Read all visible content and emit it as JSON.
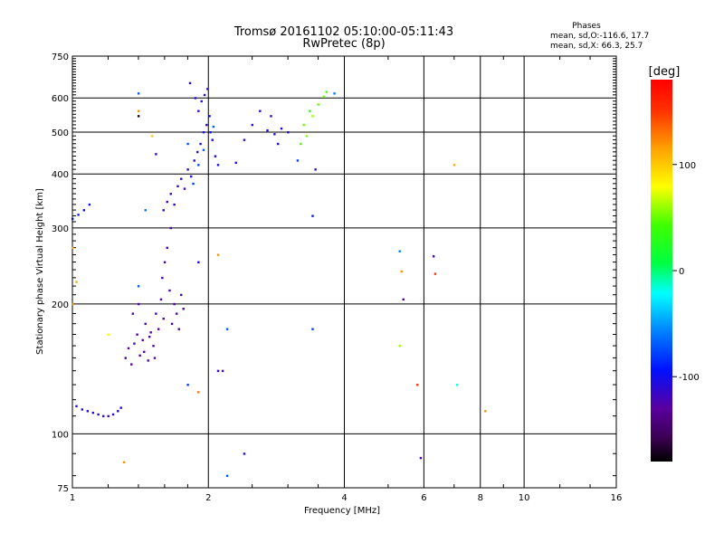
{
  "title": "Tromsø 20161102 05:10:00-05:11:43",
  "subtitle": "RwPretec (8p)",
  "phases_box": {
    "heading": "Phases",
    "line_o": "mean, sd,O:-116.6, 17.7",
    "line_x": "mean, sd,X:  66.3, 25.7"
  },
  "colorbar": {
    "unit_label": "[deg]",
    "tick_labels": [
      "100",
      "0",
      "-100"
    ],
    "tick_values": [
      100,
      0,
      -100
    ],
    "range": [
      -180,
      180
    ]
  },
  "chart_data": {
    "type": "scatter",
    "title": "Tromsø 20161102 05:10:00-05:11:43",
    "subtitle": "RwPretec (8p)",
    "xlabel": "Frequency [MHz]",
    "ylabel": "Stationary phase Virtual Height [km]",
    "x_scale": "log",
    "y_scale": "log",
    "xlim": [
      1,
      16
    ],
    "ylim": [
      75,
      750
    ],
    "x_tick_labels": [
      "1",
      "2",
      "4",
      "6",
      "8",
      "10",
      "16"
    ],
    "x_tick_values": [
      1,
      2,
      4,
      6,
      8,
      10,
      16
    ],
    "y_tick_labels": [
      "75",
      "100",
      "200",
      "300",
      "400",
      "500",
      "600",
      "750"
    ],
    "y_tick_values": [
      75,
      100,
      200,
      300,
      400,
      500,
      600,
      750
    ],
    "grid": true,
    "color_scale": "phase [deg], rainbow, -180 to 180",
    "series": [
      {
        "points": [
          [
            1.02,
            116,
            -110
          ],
          [
            1.05,
            114,
            -105
          ],
          [
            1.08,
            113,
            -108
          ],
          [
            1.11,
            112,
            -112
          ],
          [
            1.14,
            111,
            -115
          ],
          [
            1.17,
            110,
            -110
          ],
          [
            1.2,
            110,
            -118
          ],
          [
            1.23,
            111,
            -112
          ],
          [
            1.26,
            113,
            -108
          ],
          [
            1.28,
            115,
            -104
          ],
          [
            1.0,
            315,
            -95
          ],
          [
            1.03,
            322,
            -90
          ],
          [
            1.06,
            330,
            -100
          ],
          [
            1.09,
            340,
            -92
          ],
          [
            1.31,
            150,
            -125
          ],
          [
            1.33,
            158,
            -128
          ],
          [
            1.35,
            145,
            -132
          ],
          [
            1.37,
            162,
            -124
          ],
          [
            1.39,
            170,
            -126
          ],
          [
            1.41,
            152,
            -130
          ],
          [
            1.43,
            165,
            -122
          ],
          [
            1.45,
            180,
            -124
          ],
          [
            1.47,
            148,
            -128
          ],
          [
            1.49,
            172,
            -130
          ],
          [
            1.51,
            160,
            -126
          ],
          [
            1.53,
            190,
            -120
          ],
          [
            1.55,
            175,
            -128
          ],
          [
            1.57,
            205,
            -122
          ],
          [
            1.59,
            185,
            -126
          ],
          [
            1.36,
            190,
            -124
          ],
          [
            1.4,
            200,
            -120
          ],
          [
            1.44,
            155,
            -132
          ],
          [
            1.48,
            168,
            -126
          ],
          [
            1.52,
            150,
            -128
          ],
          [
            1.58,
            230,
            -122
          ],
          [
            1.6,
            250,
            -126
          ],
          [
            1.62,
            270,
            -120
          ],
          [
            1.64,
            215,
            -124
          ],
          [
            1.66,
            180,
            -118
          ],
          [
            1.68,
            200,
            -122
          ],
          [
            1.7,
            190,
            -126
          ],
          [
            1.72,
            175,
            -120
          ],
          [
            1.74,
            210,
            -124
          ],
          [
            1.76,
            195,
            -128
          ],
          [
            1.59,
            330,
            -120
          ],
          [
            1.62,
            345,
            -118
          ],
          [
            1.65,
            360,
            -122
          ],
          [
            1.68,
            340,
            -116
          ],
          [
            1.71,
            375,
            -120
          ],
          [
            1.74,
            390,
            -114
          ],
          [
            1.77,
            370,
            -118
          ],
          [
            1.8,
            410,
            -112
          ],
          [
            1.83,
            395,
            -110
          ],
          [
            1.86,
            430,
            -114
          ],
          [
            1.89,
            450,
            -108
          ],
          [
            1.92,
            470,
            -104
          ],
          [
            1.95,
            500,
            -106
          ],
          [
            1.98,
            520,
            -110
          ],
          [
            2.01,
            545,
            -102
          ],
          [
            2.04,
            480,
            -96
          ],
          [
            2.07,
            440,
            -100
          ],
          [
            2.1,
            420,
            -104
          ],
          [
            1.9,
            560,
            -108
          ],
          [
            1.93,
            590,
            -112
          ],
          [
            1.96,
            610,
            -106
          ],
          [
            1.99,
            630,
            -110
          ],
          [
            1.82,
            650,
            -104
          ],
          [
            1.87,
            600,
            -108
          ],
          [
            2.02,
            500,
            -90
          ],
          [
            1.85,
            380,
            -80
          ],
          [
            1.9,
            420,
            -75
          ],
          [
            1.95,
            455,
            -70
          ],
          [
            1.8,
            470,
            -72
          ],
          [
            2.05,
            515,
            -68
          ],
          [
            2.3,
            425,
            -108
          ],
          [
            2.4,
            480,
            -112
          ],
          [
            2.5,
            520,
            -104
          ],
          [
            2.6,
            560,
            -110
          ],
          [
            2.7,
            505,
            -106
          ],
          [
            2.75,
            545,
            -116
          ],
          [
            2.8,
            495,
            -108
          ],
          [
            2.85,
            470,
            -112
          ],
          [
            2.9,
            510,
            -104
          ],
          [
            3.0,
            500,
            -108
          ],
          [
            3.15,
            430,
            -80
          ],
          [
            3.2,
            470,
            45
          ],
          [
            3.25,
            520,
            50
          ],
          [
            3.3,
            490,
            55
          ],
          [
            3.35,
            560,
            40
          ],
          [
            3.4,
            545,
            60
          ],
          [
            3.5,
            580,
            48
          ],
          [
            3.6,
            605,
            52
          ],
          [
            3.65,
            620,
            45
          ],
          [
            3.8,
            615,
            -60
          ],
          [
            3.45,
            410,
            -110
          ],
          [
            3.4,
            320,
            -95
          ],
          [
            3.4,
            175,
            -80
          ],
          [
            1.4,
            220,
            -70
          ],
          [
            1.45,
            330,
            -60
          ],
          [
            1.53,
            445,
            -118
          ],
          [
            1.65,
            300,
            -120
          ],
          [
            1.3,
            86,
            120
          ],
          [
            1.4,
            615,
            -70
          ],
          [
            1.4,
            545,
            -175
          ],
          [
            1.4,
            560,
            120
          ],
          [
            1.5,
            490,
            100
          ],
          [
            1.8,
            130,
            -80
          ],
          [
            1.9,
            125,
            130
          ],
          [
            2.1,
            140,
            -115
          ],
          [
            2.15,
            140,
            -120
          ],
          [
            2.2,
            80,
            -70
          ],
          [
            2.4,
            90,
            -100
          ],
          [
            1.9,
            250,
            -100
          ],
          [
            2.1,
            260,
            120
          ],
          [
            2.2,
            175,
            -70
          ],
          [
            5.3,
            265,
            -60
          ],
          [
            5.35,
            238,
            120
          ],
          [
            5.4,
            205,
            -120
          ],
          [
            5.3,
            160,
            60
          ],
          [
            5.9,
            88,
            -120
          ],
          [
            5.8,
            130,
            150
          ],
          [
            6.3,
            258,
            -120
          ],
          [
            6.35,
            235,
            150
          ],
          [
            7.0,
            420,
            110
          ],
          [
            7.1,
            130,
            -20
          ],
          [
            8.2,
            113,
            120
          ],
          [
            1.2,
            170,
            80
          ],
          [
            1.0,
            270,
            110
          ],
          [
            1.02,
            225,
            110
          ],
          [
            1.0,
            200,
            120
          ]
        ]
      }
    ]
  }
}
